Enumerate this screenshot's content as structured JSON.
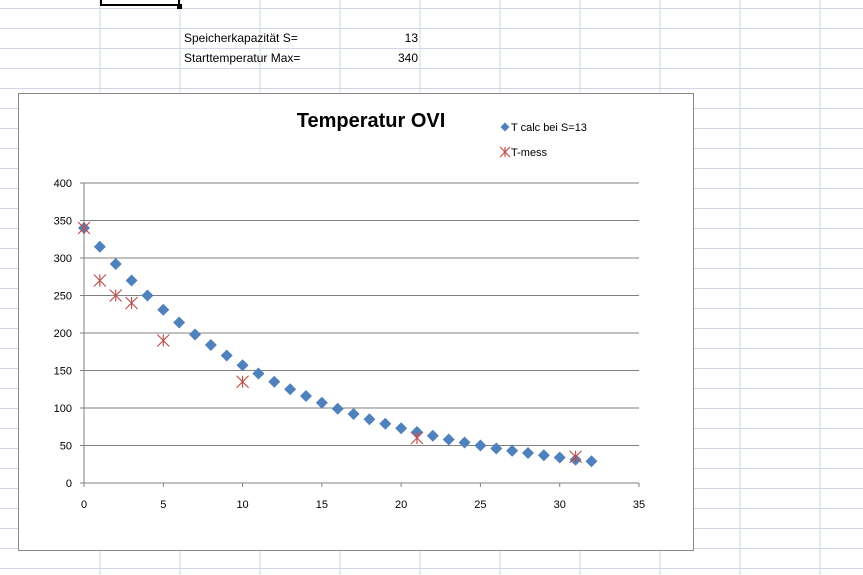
{
  "sheet": {
    "rows": [
      {
        "label": "Speicherkapazität S=",
        "value": "13"
      },
      {
        "label": "Starttemperatur Max=",
        "value": "340"
      }
    ]
  },
  "colors": {
    "grid_line": "#d0d7e5",
    "calc_marker": "#4f81bd",
    "mess_marker": "#c0504d",
    "gridline": "#808080"
  },
  "chart_data": {
    "type": "scatter",
    "title": "Temperatur OVI",
    "xlabel": "",
    "ylabel": "",
    "xlim": [
      0,
      35
    ],
    "ylim": [
      0,
      400
    ],
    "x_ticks": [
      0,
      5,
      10,
      15,
      20,
      25,
      30,
      35
    ],
    "y_ticks": [
      0,
      50,
      100,
      150,
      200,
      250,
      300,
      350,
      400
    ],
    "legend_position": "top-right",
    "series": [
      {
        "name": "T calc bei S=13",
        "marker": "diamond",
        "x": [
          0,
          1,
          2,
          3,
          4,
          5,
          6,
          7,
          8,
          9,
          10,
          11,
          12,
          13,
          14,
          15,
          16,
          17,
          18,
          19,
          20,
          21,
          22,
          23,
          24,
          25,
          26,
          27,
          28,
          29,
          30,
          31,
          32
        ],
        "y": [
          340,
          315,
          292,
          270,
          250,
          231,
          214,
          198,
          184,
          170,
          157,
          146,
          135,
          125,
          116,
          107,
          99,
          92,
          85,
          79,
          73,
          68,
          63,
          58,
          54,
          50,
          46,
          43,
          40,
          37,
          34,
          31,
          29
        ]
      },
      {
        "name": "T-mess",
        "marker": "star",
        "x": [
          0,
          1,
          2,
          3,
          5,
          10,
          21,
          31
        ],
        "y": [
          340,
          270,
          250,
          240,
          190,
          135,
          60,
          35
        ]
      }
    ]
  }
}
